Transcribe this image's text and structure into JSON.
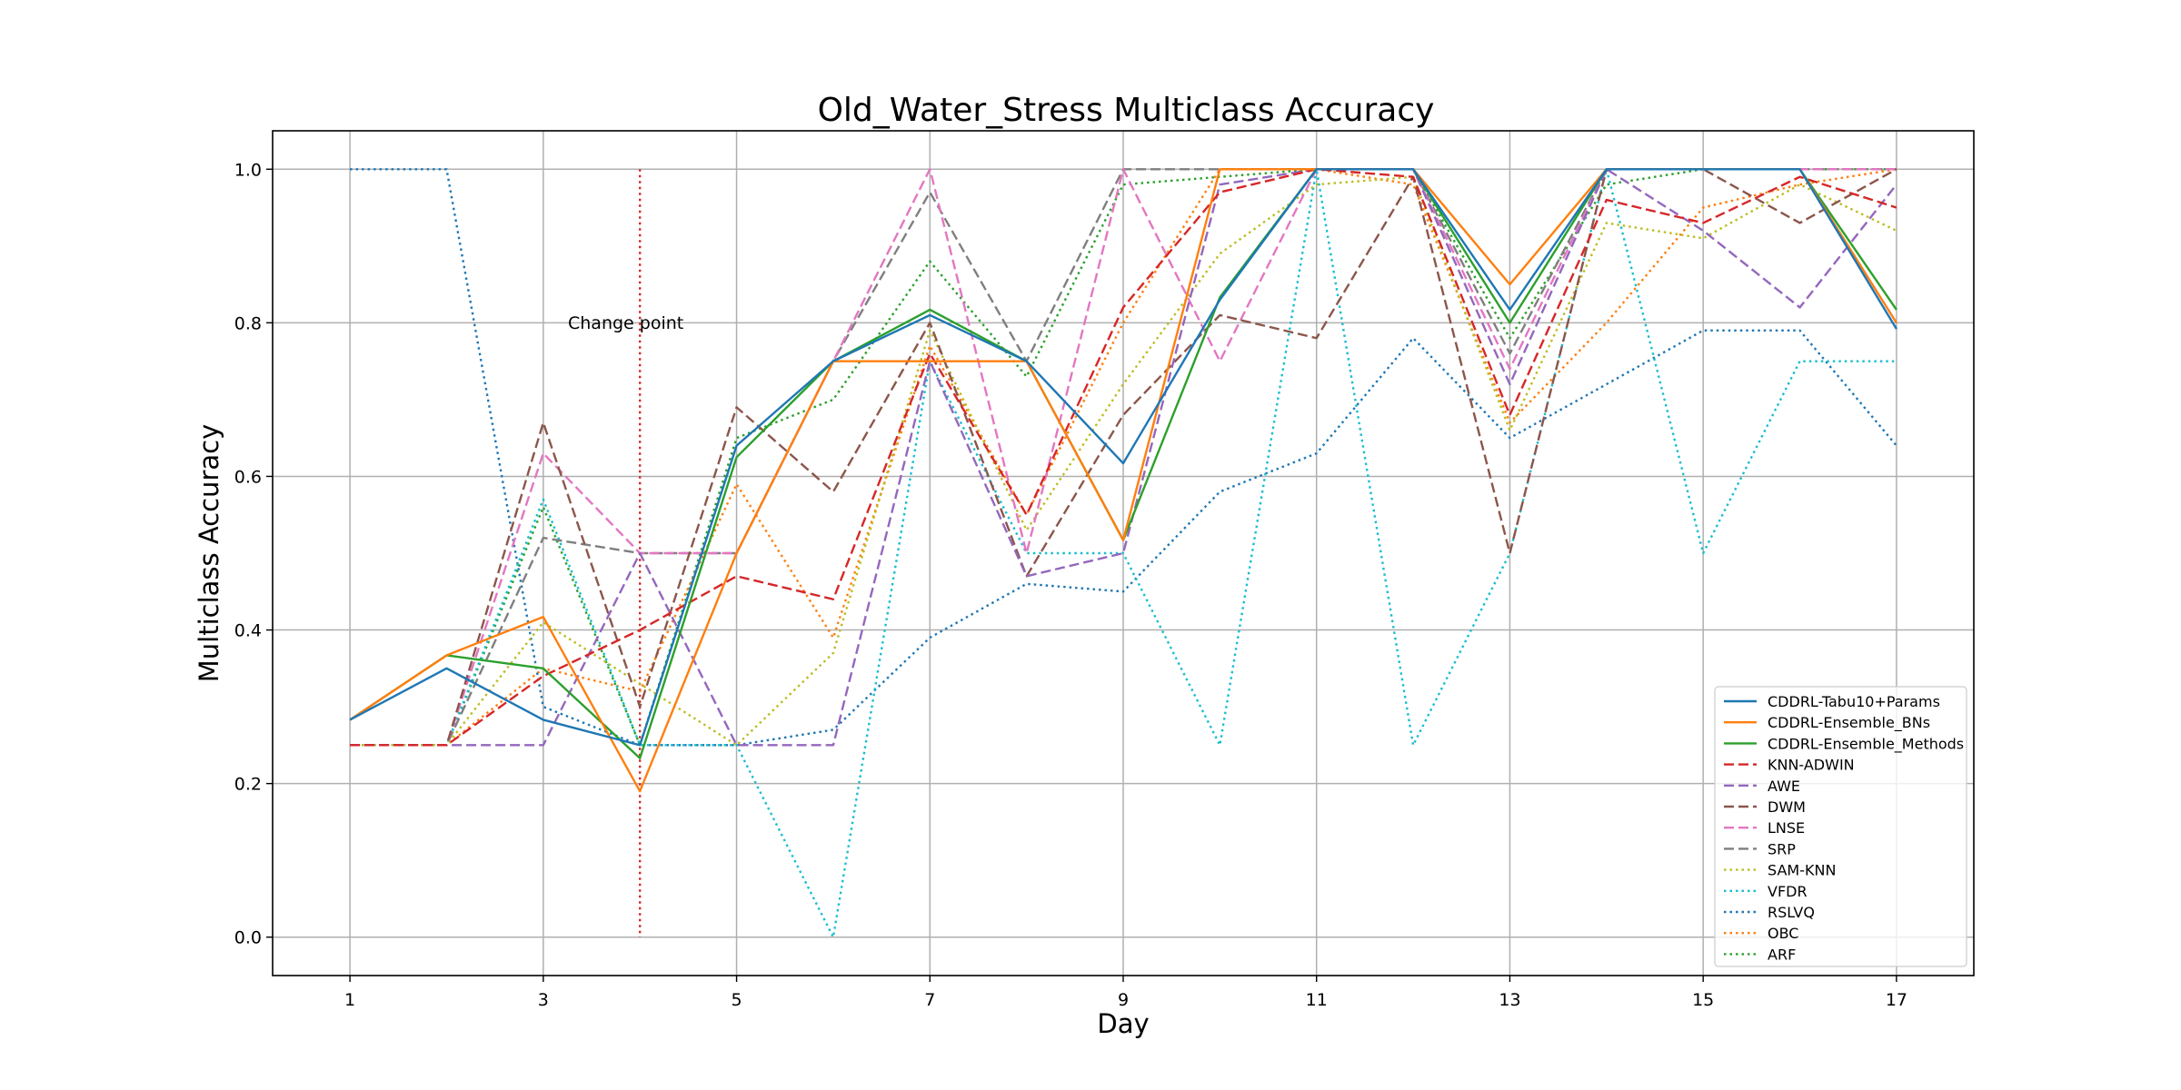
{
  "chart_data": {
    "type": "line",
    "title": "Old_Water_Stress Multiclass Accuracy",
    "xlabel": "Day",
    "ylabel": "Multiclass Accuracy",
    "x": [
      1,
      2,
      3,
      4,
      5,
      6,
      7,
      8,
      9,
      10,
      11,
      12,
      13,
      14,
      15,
      16,
      17
    ],
    "xticks": [
      1,
      3,
      5,
      7,
      9,
      11,
      13,
      15,
      17
    ],
    "yticks": [
      0.0,
      0.2,
      0.4,
      0.6,
      0.8,
      1.0
    ],
    "ytick_labels": [
      "0.0",
      "0.2",
      "0.4",
      "0.6",
      "0.8",
      "1.0"
    ],
    "xlim": [
      0.2,
      17.8
    ],
    "ylim": [
      -0.05,
      1.05
    ],
    "grid": true,
    "legend_position": "lower-right",
    "annotation": {
      "text": "Change point",
      "x": 4,
      "color": "#d62728"
    },
    "series": [
      {
        "name": "CDDRL-Tabu10+Params",
        "color": "#1f77b4",
        "style": "solid",
        "values": [
          0.283,
          0.35,
          0.283,
          0.25,
          0.64,
          0.75,
          0.81,
          0.75,
          0.617,
          0.83,
          1.0,
          1.0,
          0.817,
          1.0,
          1.0,
          1.0,
          0.792
        ]
      },
      {
        "name": "CDDRL-Ensemble_BNs",
        "color": "#ff7f0e",
        "style": "solid",
        "values": [
          0.283,
          0.367,
          0.417,
          0.19,
          0.5,
          0.75,
          0.75,
          0.75,
          0.517,
          1.0,
          1.0,
          1.0,
          0.85,
          1.0,
          1.0,
          1.0,
          0.8
        ]
      },
      {
        "name": "CDDRL-Ensemble_Methods",
        "color": "#2ca02c",
        "style": "solid",
        "values": [
          0.283,
          0.367,
          0.35,
          0.233,
          0.625,
          0.75,
          0.817,
          0.75,
          0.517,
          0.833,
          1.0,
          1.0,
          0.8,
          1.0,
          1.0,
          1.0,
          0.817
        ]
      },
      {
        "name": "KNN-ADWIN",
        "color": "#d62728",
        "style": "dashed",
        "values": [
          0.25,
          0.25,
          0.34,
          0.4,
          0.47,
          0.44,
          0.76,
          0.55,
          0.82,
          0.97,
          1.0,
          0.99,
          0.68,
          0.96,
          0.93,
          0.99,
          0.95
        ]
      },
      {
        "name": "AWE",
        "color": "#9467bd",
        "style": "dashed",
        "values": [
          0.25,
          0.25,
          0.25,
          0.5,
          0.25,
          0.25,
          0.75,
          0.47,
          0.5,
          0.98,
          1.0,
          1.0,
          0.72,
          1.0,
          0.92,
          0.82,
          0.98
        ]
      },
      {
        "name": "DWM",
        "color": "#8c564b",
        "style": "dashed",
        "values": [
          0.25,
          0.25,
          0.67,
          0.3,
          0.69,
          0.58,
          0.8,
          0.47,
          0.68,
          0.81,
          0.78,
          0.99,
          0.5,
          1.0,
          1.0,
          0.93,
          1.0
        ]
      },
      {
        "name": "LNSE",
        "color": "#e377c2",
        "style": "dashed",
        "values": [
          0.25,
          0.25,
          0.63,
          0.5,
          0.5,
          0.75,
          1.0,
          0.5,
          1.0,
          0.75,
          1.0,
          1.0,
          0.74,
          1.0,
          1.0,
          1.0,
          1.0
        ]
      },
      {
        "name": "SRP",
        "color": "#7f7f7f",
        "style": "dashed",
        "values": [
          0.25,
          0.25,
          0.52,
          0.5,
          0.5,
          0.75,
          0.97,
          0.75,
          1.0,
          1.0,
          1.0,
          1.0,
          0.76,
          1.0,
          1.0,
          1.0,
          1.0
        ]
      },
      {
        "name": "SAM-KNN",
        "color": "#bcbd22",
        "style": "dotted",
        "values": [
          0.25,
          0.25,
          0.41,
          0.33,
          0.25,
          0.37,
          0.79,
          0.53,
          0.72,
          0.89,
          0.98,
          0.99,
          0.66,
          0.93,
          0.91,
          0.98,
          0.92
        ]
      },
      {
        "name": "VFDR",
        "color": "#17becf",
        "style": "dotted",
        "values": [
          0.25,
          0.25,
          0.57,
          0.25,
          0.25,
          0.0,
          0.75,
          0.5,
          0.5,
          0.25,
          1.0,
          0.25,
          0.5,
          1.0,
          0.5,
          0.75,
          0.75
        ]
      },
      {
        "name": "RSLVQ",
        "color": "#1f77b4",
        "style": "dotted",
        "values": [
          1.0,
          1.0,
          0.3,
          0.25,
          0.25,
          0.27,
          0.39,
          0.46,
          0.45,
          0.58,
          0.63,
          0.78,
          0.65,
          0.72,
          0.79,
          0.79,
          0.64
        ]
      },
      {
        "name": "OBC",
        "color": "#ff7f0e",
        "style": "dotted",
        "values": [
          0.25,
          0.25,
          0.35,
          0.32,
          0.59,
          0.39,
          0.77,
          0.55,
          0.8,
          1.0,
          1.0,
          0.98,
          0.67,
          0.8,
          0.95,
          0.98,
          1.0
        ]
      },
      {
        "name": "ARF",
        "color": "#2ca02c",
        "style": "dotted",
        "values": [
          0.25,
          0.25,
          0.56,
          0.25,
          0.65,
          0.7,
          0.88,
          0.73,
          0.98,
          0.99,
          1.0,
          1.0,
          0.78,
          0.98,
          1.0,
          1.0,
          1.0
        ]
      }
    ]
  }
}
